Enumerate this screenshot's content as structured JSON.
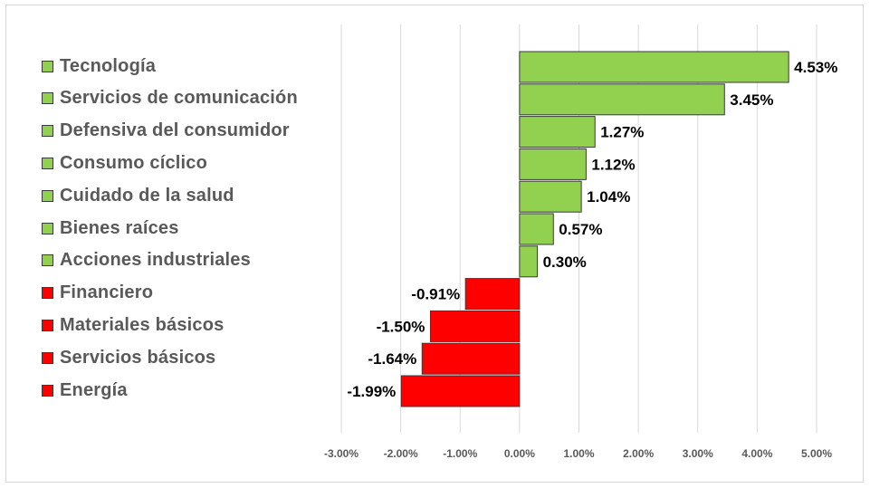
{
  "chart_data": {
    "type": "bar",
    "orientation": "horizontal",
    "categories": [
      "Tecnología",
      "Servicios de comunicación",
      "Defensiva del consumidor",
      "Consumo cíclico",
      "Cuidado de la salud",
      "Bienes raíces",
      "Acciones industriales",
      "Financiero",
      "Materiales básicos",
      "Servicios básicos",
      "Energía"
    ],
    "values": [
      4.53,
      3.45,
      1.27,
      1.12,
      1.04,
      0.57,
      0.3,
      -0.91,
      -1.5,
      -1.64,
      -1.99
    ],
    "data_labels": [
      "4.53%",
      "3.45%",
      "1.27%",
      "1.12%",
      "1.04%",
      "0.57%",
      "0.30%",
      "-0.91%",
      "-1.50%",
      "-1.64%",
      "-1.99%"
    ],
    "xlim": [
      -3,
      5
    ],
    "xticks": [
      -3,
      -2,
      -1,
      0,
      1,
      2,
      3,
      4,
      5
    ],
    "xtick_labels": [
      "-3.00%",
      "-2.00%",
      "-1.00%",
      "0.00%",
      "1.00%",
      "2.00%",
      "3.00%",
      "4.00%",
      "5.00%"
    ],
    "grid": true,
    "legend_position": "left",
    "title": "",
    "xlabel": "",
    "ylabel": "",
    "colors": {
      "positive": "#92d050",
      "negative": "#ff0000",
      "grid": "#d9d9d9",
      "bar_edge": "#3a3a3a"
    }
  }
}
